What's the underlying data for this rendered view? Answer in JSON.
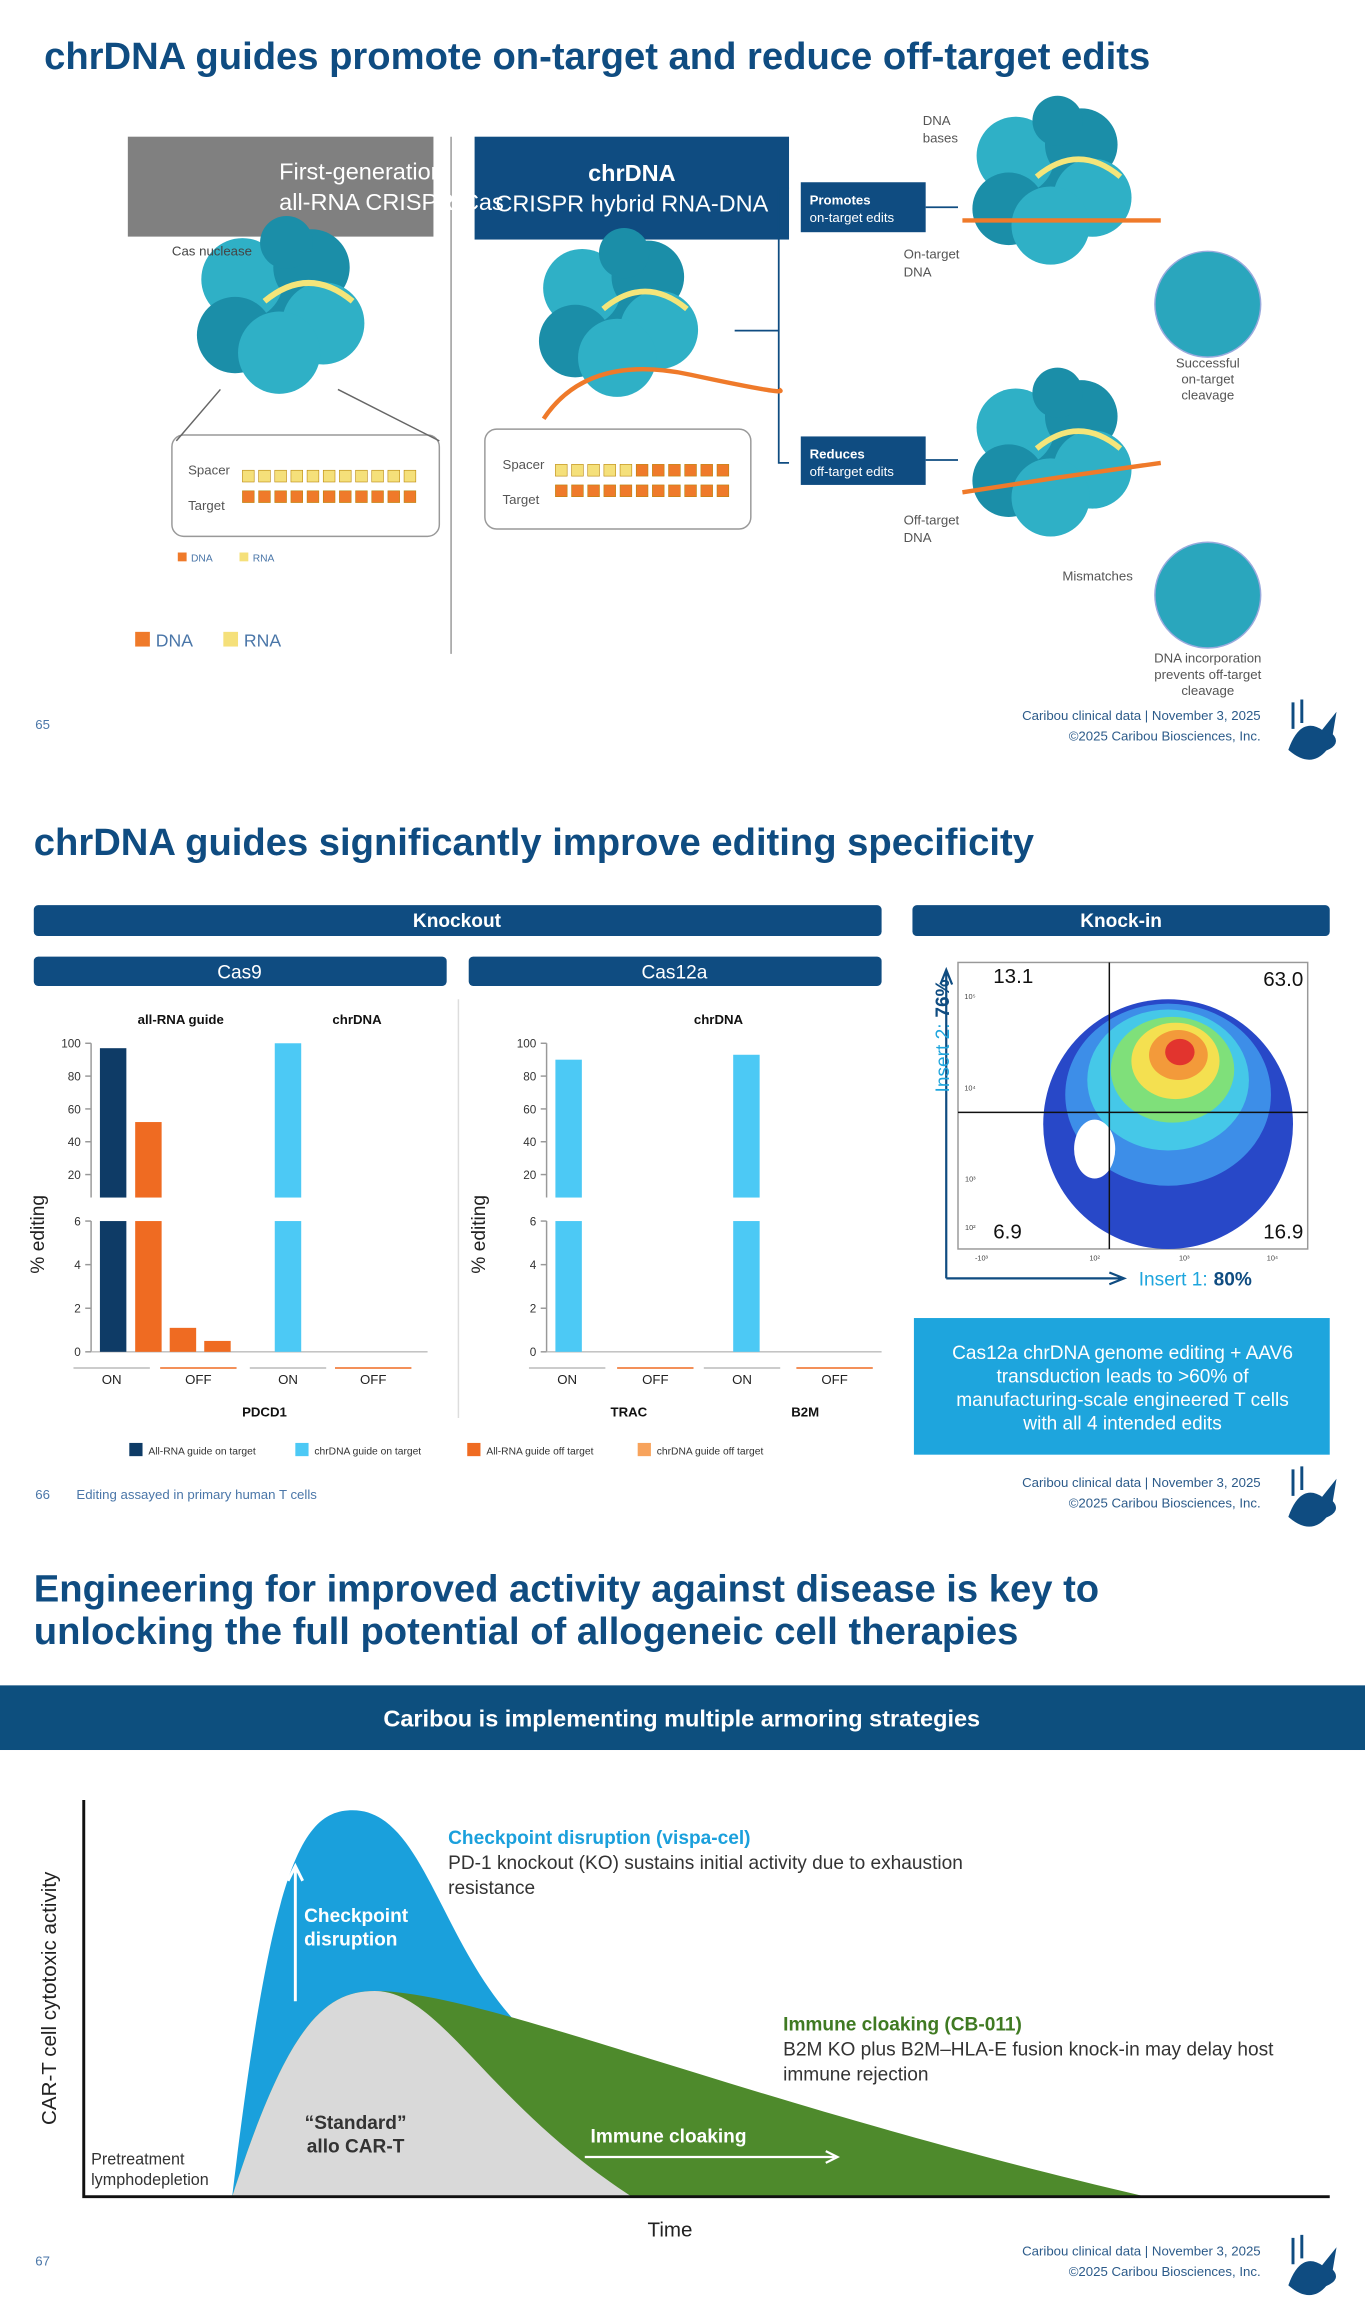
{
  "slide1": {
    "title": "chrDNA guides promote on-target and reduce off-target edits",
    "first_gen": [
      "First-generation",
      "all-RNA CRISPR-Cas"
    ],
    "chrdna_title": "chrDNA",
    "chrdna_subtitle": "CRISPR hybrid RNA-DNA",
    "cas_nuclease": "Cas nuclease",
    "spacer": "Spacer",
    "target": "Target",
    "dna": "DNA",
    "rna": "RNA",
    "promotes": [
      "Promotes",
      "on-target edits"
    ],
    "reduces": [
      "Reduces",
      "off-target edits"
    ],
    "dna_bases": [
      "DNA",
      "bases"
    ],
    "on_target_dna": [
      "On-target",
      "DNA"
    ],
    "off_target_dna": [
      "Off-target",
      "DNA"
    ],
    "successful": [
      "Successful",
      "on-target",
      "cleavage"
    ],
    "mismatches": "Mismatches",
    "incorporation": [
      "DNA incorporation",
      "prevents off-target",
      "cleavage"
    ],
    "page": "65"
  },
  "footer": [
    "Caribou clinical data | November 3, 2025",
    "©2025 Caribou Biosciences, Inc."
  ],
  "slide2": {
    "title": "chrDNA guides significantly improve editing specificity",
    "knockout": "Knockout",
    "knockin": "Knock-in",
    "ylabel": "% editing",
    "series": [
      {
        "name": "All-RNA guide on target",
        "color": "#0e3b66"
      },
      {
        "name": "chrDNA guide on target",
        "color": "#4cc9f5"
      },
      {
        "name": "All-RNA guide off target",
        "color": "#ef6b22"
      },
      {
        "name": "chrDNA guide off target",
        "color": "#f7a35c"
      }
    ],
    "upper_ylim": [
      6,
      100
    ],
    "upper_ticks": [
      20,
      40,
      60,
      80,
      100
    ],
    "lower_ylim": [
      0,
      6
    ],
    "lower_ticks": [
      0,
      2,
      4,
      6
    ],
    "charts": [
      {
        "name": "Cas9",
        "group_labels": [
          "all-RNA guide",
          "chrDNA"
        ],
        "categories": [
          "ON",
          "OFF",
          "ON",
          "OFF"
        ],
        "genes": [
          "PDCD1"
        ],
        "bars": [
          {
            "category": 0,
            "series": 0,
            "value": 97
          },
          {
            "category": 1,
            "series": 2,
            "value": 52
          },
          {
            "category": 1,
            "series": 2,
            "value": 1.1
          },
          {
            "category": 1,
            "series": 2,
            "value": 0.5
          },
          {
            "category": 2,
            "series": 1,
            "value": 100
          }
        ]
      },
      {
        "name": "Cas12a",
        "group_labels": [
          "chrDNA"
        ],
        "categories": [
          "ON",
          "OFF",
          "ON",
          "OFF"
        ],
        "genes": [
          "TRAC",
          "B2M"
        ],
        "bars": [
          {
            "category": 0,
            "series": 1,
            "value": 90
          },
          {
            "category": 2,
            "series": 1,
            "value": 93
          }
        ]
      }
    ],
    "flow": {
      "insert2_label": "Insert 2:",
      "insert2_value": "76%",
      "insert1_label": "Insert 1:",
      "insert1_value": "80%",
      "quadrants": [
        "13.1",
        "63.0",
        "6.9",
        "16.9"
      ],
      "yticks": [
        "10⁵",
        "10⁴",
        "10³",
        "10²"
      ],
      "xticks": [
        "-10³",
        "10²",
        "10³",
        "10⁴"
      ]
    },
    "callout": [
      "Cas12a chrDNA genome editing + AAV6",
      "transduction leads to >60% of",
      "manufacturing-scale engineered T cells",
      "with all 4 intended edits"
    ],
    "page": "66",
    "note": "Editing assayed in primary human T cells"
  },
  "slide3": {
    "title": [
      "Engineering for improved activity against disease is key to",
      "unlocking the full potential of allogeneic cell therapies"
    ],
    "banner": "Caribou is implementing multiple armoring strategies",
    "ylabel": "CAR-T cell cytotoxic activity",
    "xlabel": "Time",
    "checkpoint_title": "Checkpoint disruption (vispa-cel)",
    "checkpoint_text": [
      "PD-1 knockout (KO) sustains initial activity due to exhaustion",
      "resistance"
    ],
    "checkpoint_area": [
      "Checkpoint",
      "disruption"
    ],
    "cloaking_title": "Immune cloaking (CB-011)",
    "cloaking_text": [
      "B2M KO plus B2M–HLA-E fusion knock-in may delay host",
      "immune rejection"
    ],
    "cloaking_area": "Immune cloaking",
    "standard": [
      "“Standard”",
      "allo CAR-T"
    ],
    "pretreatment": [
      "Pretreatment",
      "lymphodepletion"
    ],
    "page": "67"
  }
}
